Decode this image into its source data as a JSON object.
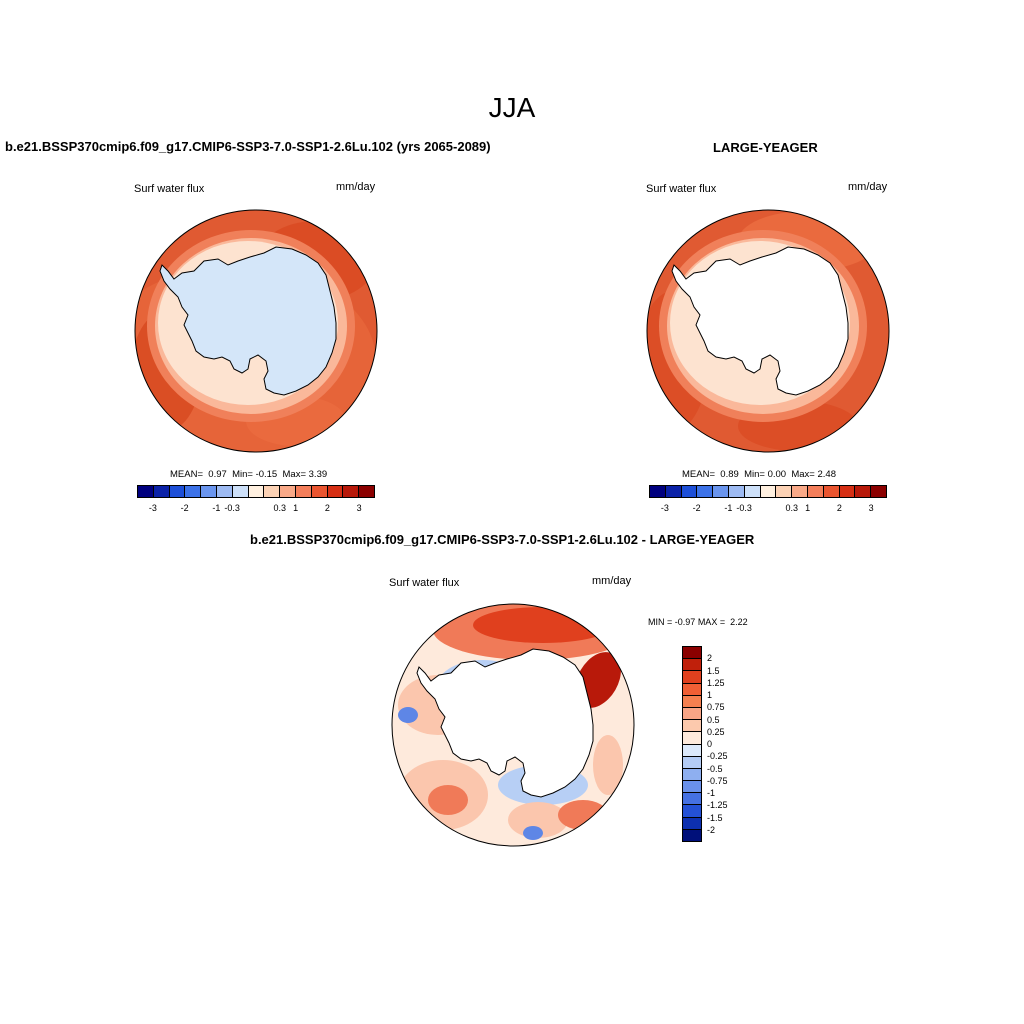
{
  "title": "JJA",
  "panels": [
    {
      "title": "b.e21.BSSP370cmip6.f09_g17.CMIP6-SSP3-7.0-SSP1-2.6Lu.102 (yrs 2065-2089)",
      "variable": "Surf water flux",
      "units": "mm/day",
      "stats": {
        "mean_label": "MEAN=",
        "mean": "0.97",
        "min_label": "Min=",
        "min": "-0.15",
        "max_label": "Max=",
        "max": "3.39"
      }
    },
    {
      "title": "LARGE-YEAGER",
      "variable": "Surf water flux",
      "units": "mm/day",
      "stats": {
        "mean_label": "MEAN=",
        "mean": "0.89",
        "min_label": "Min=",
        "min": "0.00",
        "max_label": "Max=",
        "max": "2.48"
      }
    },
    {
      "title": "b.e21.BSSP370cmip6.f09_g17.CMIP6-SSP3-7.0-SSP1-2.6Lu.102 - LARGE-YEAGER",
      "variable": "Surf water flux",
      "units": "mm/day",
      "minmax": {
        "min_label": "MIN =",
        "min": "-0.97",
        "max_label": "MAX =",
        "max": "2.22"
      }
    }
  ],
  "colorbar_main": {
    "colors": [
      "#00007f",
      "#0b22a8",
      "#1d4fd8",
      "#3c72e8",
      "#6a95ee",
      "#9dbaf2",
      "#cde0f9",
      "#fff0e0",
      "#fcd2b5",
      "#f9a988",
      "#f47e5a",
      "#ea5530",
      "#d62f14",
      "#b8190a",
      "#8b0000"
    ],
    "tick_labels": [
      "-3",
      "-2",
      "-1",
      "-0.3",
      "0.3",
      "1",
      "2",
      "3"
    ]
  },
  "colorbar_diff": {
    "colors": [
      "#8b0000",
      "#c0200b",
      "#e0401e",
      "#f05f35",
      "#f58050",
      "#f9a586",
      "#fcc9ad",
      "#feeadc",
      "#dce9fb",
      "#b4ccf5",
      "#8eaff0",
      "#6a91eb",
      "#4571e3",
      "#2451d6",
      "#0d30b0",
      "#00107a"
    ],
    "labels": [
      "2",
      "1.5",
      "1.25",
      "1",
      "0.75",
      "0.5",
      "0.25",
      "0",
      "-0.25",
      "-0.5",
      "-0.75",
      "-1",
      "-1.25",
      "-1.5",
      "-2"
    ]
  },
  "map_colors": {
    "ocean_strong": "#e05a32",
    "ocean_mid": "#f0805a",
    "ocean_light": "#fab89a",
    "near_coast": "#fde3d0",
    "ice_light_blue": "#d4e6f9",
    "land_white": "#ffffff",
    "diff_red": "#f07a58",
    "diff_pink": "#fbc6ad",
    "diff_pale": "#feeadc",
    "diff_blue": "#b7cff5",
    "diff_darkblue": "#5e86e6",
    "diff_darkred": "#b8190a"
  }
}
